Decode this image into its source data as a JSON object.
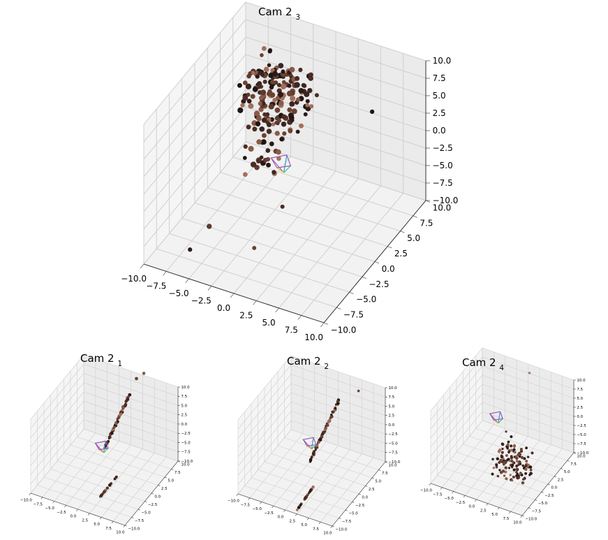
{
  "chart_data": [
    {
      "type": "scatter3d",
      "title": "Cam 2",
      "title_subscript": "3",
      "xlim": [
        -10,
        10
      ],
      "ylim": [
        -10,
        10
      ],
      "zlim": [
        -10,
        10
      ],
      "x_ticks": [
        "−10.0",
        "−7.5",
        "−5.0",
        "−2.5",
        "0.0",
        "2.5",
        "5.0",
        "7.5",
        "10.0"
      ],
      "y_ticks": [
        "−10.0",
        "−7.5",
        "−5.0",
        "−2.5",
        "0.0",
        "2.5",
        "5.0",
        "7.5",
        "10.0"
      ],
      "z_ticks": [
        "−10.0",
        "−7.5",
        "−5.0",
        "−2.5",
        "0.0",
        "2.5",
        "5.0",
        "7.5",
        "10.0"
      ],
      "grid": true,
      "point_colors": [
        "#2b1a17",
        "#4a2c24",
        "#6b4233",
        "#8a5a48",
        "#3b2520",
        "#a0705c",
        "#1f1512",
        "#5c3a2e"
      ],
      "outlier_colors": [
        "#7a8a3a",
        "#2a3a4a",
        "#6a7a9a"
      ],
      "camera_frustum_colors": [
        "#9b59b6",
        "#3498db",
        "#2ecc71",
        "#f1c40f",
        "#e74c3c",
        "#e67e22"
      ]
    },
    {
      "type": "scatter3d",
      "title": "Cam 2",
      "title_subscript": "1",
      "xlim": [
        -10,
        10
      ],
      "ylim": [
        -10,
        10
      ],
      "zlim": [
        -10,
        10
      ],
      "x_ticks": [
        "−10.0",
        "−7.5",
        "−5.0",
        "−2.5",
        "0.0",
        "2.5",
        "5.0",
        "7.5",
        "10.0"
      ],
      "y_ticks": [
        "−10.0",
        "−7.5",
        "−5.0",
        "−2.5",
        "0.0",
        "2.5",
        "5.0",
        "7.5",
        "10.0"
      ],
      "z_ticks": [
        "−10.0",
        "−7.5",
        "−5.0",
        "−2.5",
        "0.0",
        "2.5",
        "5.0",
        "7.5",
        "10.0"
      ],
      "grid": true
    },
    {
      "type": "scatter3d",
      "title": "Cam 2",
      "title_subscript": "2",
      "xlim": [
        -10,
        10
      ],
      "ylim": [
        -10,
        10
      ],
      "zlim": [
        -10,
        10
      ],
      "x_ticks": [
        "−10.0",
        "−7.5",
        "−5.0",
        "−2.5",
        "0.0",
        "2.5",
        "5.0",
        "7.5",
        "10.0"
      ],
      "y_ticks": [
        "−10.0",
        "−7.5",
        "−5.0",
        "−2.5",
        "0.0",
        "2.5",
        "5.0",
        "7.5",
        "10.0"
      ],
      "z_ticks": [
        "−10.0",
        "−7.5",
        "−5.0",
        "−2.5",
        "0.0",
        "2.5",
        "5.0",
        "7.5",
        "10.0"
      ],
      "grid": true
    },
    {
      "type": "scatter3d",
      "title": "Cam 2",
      "title_subscript": "4",
      "xlim": [
        -10,
        10
      ],
      "ylim": [
        -10,
        10
      ],
      "zlim": [
        -10,
        10
      ],
      "x_ticks": [
        "−10.0",
        "−7.5",
        "−5.0",
        "−2.5",
        "0.0",
        "2.5",
        "5.0",
        "7.5",
        "10.0"
      ],
      "y_ticks": [
        "−10.0",
        "−7.5",
        "−5.0",
        "−2.5",
        "0.0",
        "2.5",
        "5.0",
        "7.5",
        "10.0"
      ],
      "z_ticks": [
        "−10.0",
        "−7.5",
        "−5.0",
        "−2.5",
        "0.0",
        "2.5",
        "5.0",
        "7.5",
        "10.0"
      ],
      "grid": true
    }
  ]
}
